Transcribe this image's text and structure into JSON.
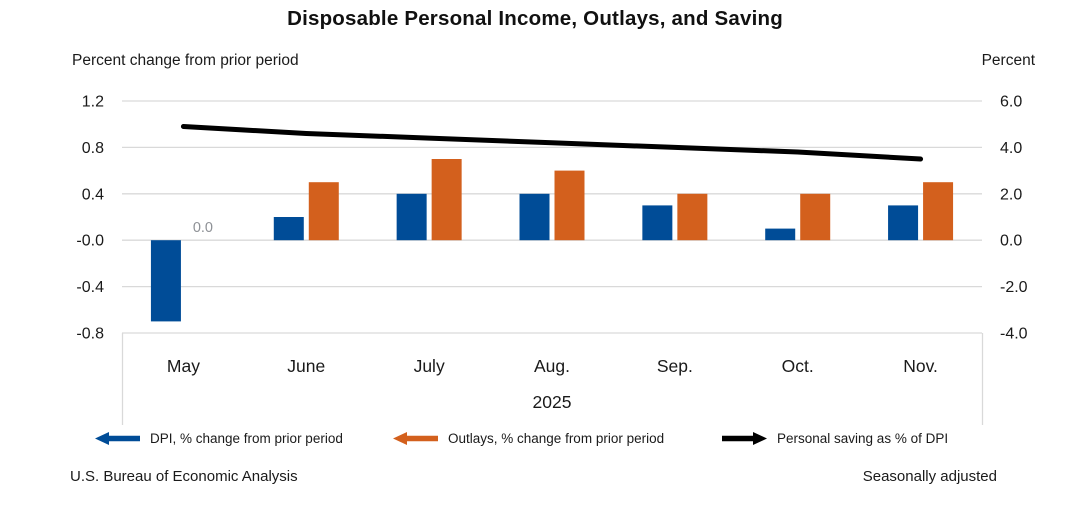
{
  "title": "Disposable Personal Income, Outlays, and Saving",
  "axis_headers": {
    "left": "Percent change from prior period",
    "right": "Percent"
  },
  "footer": {
    "left": "U.S. Bureau of Economic Analysis",
    "right": "Seasonally adjusted"
  },
  "legend": [
    {
      "label": "DPI, % change from prior period",
      "color": "#004C97",
      "direction": "left"
    },
    {
      "label": "Outlays, % change from prior period",
      "color": "#D3601D",
      "direction": "left"
    },
    {
      "label": "Personal saving as % of DPI",
      "color": "#000000",
      "direction": "right"
    }
  ],
  "colors": {
    "dpi_bar": "#004C97",
    "outlays_bar": "#D3601D",
    "saving_line": "#000000",
    "gridline": "#D9D9D9",
    "axis_border": "#D9D9D9",
    "annotation": "#8E9196",
    "text": "#1A1A1A"
  },
  "chart_data": {
    "type": "combo-bar-line",
    "categories": [
      "May",
      "June",
      "July",
      "Aug.",
      "Sep.",
      "Oct.",
      "Nov."
    ],
    "x_axis_year": "2025",
    "series": [
      {
        "name": "DPI, % change from prior period",
        "type": "bar",
        "axis": "left",
        "color_key": "dpi_bar",
        "values": [
          -0.7,
          0.2,
          0.4,
          0.4,
          0.3,
          0.1,
          0.3
        ]
      },
      {
        "name": "Outlays, % change from prior period",
        "type": "bar",
        "axis": "left",
        "color_key": "outlays_bar",
        "values": [
          0.0,
          0.5,
          0.7,
          0.6,
          0.4,
          0.4,
          0.5
        ]
      },
      {
        "name": "Personal saving as % of DPI",
        "type": "line",
        "axis": "right",
        "color_key": "saving_line",
        "values": [
          4.9,
          4.6,
          4.4,
          4.2,
          4.0,
          3.8,
          3.5
        ]
      }
    ],
    "left_axis": {
      "title": "Percent change from prior period",
      "min": -0.8,
      "max": 1.2,
      "step": 0.4
    },
    "right_axis": {
      "title": "Percent",
      "min": -4.0,
      "max": 6.0,
      "step": 2.0
    },
    "annotations": [
      {
        "text": "0.0",
        "category_index": 0,
        "series": "Outlays, % change from prior period",
        "color_key": "annotation"
      }
    ],
    "legend_position": "bottom",
    "grid": true
  }
}
